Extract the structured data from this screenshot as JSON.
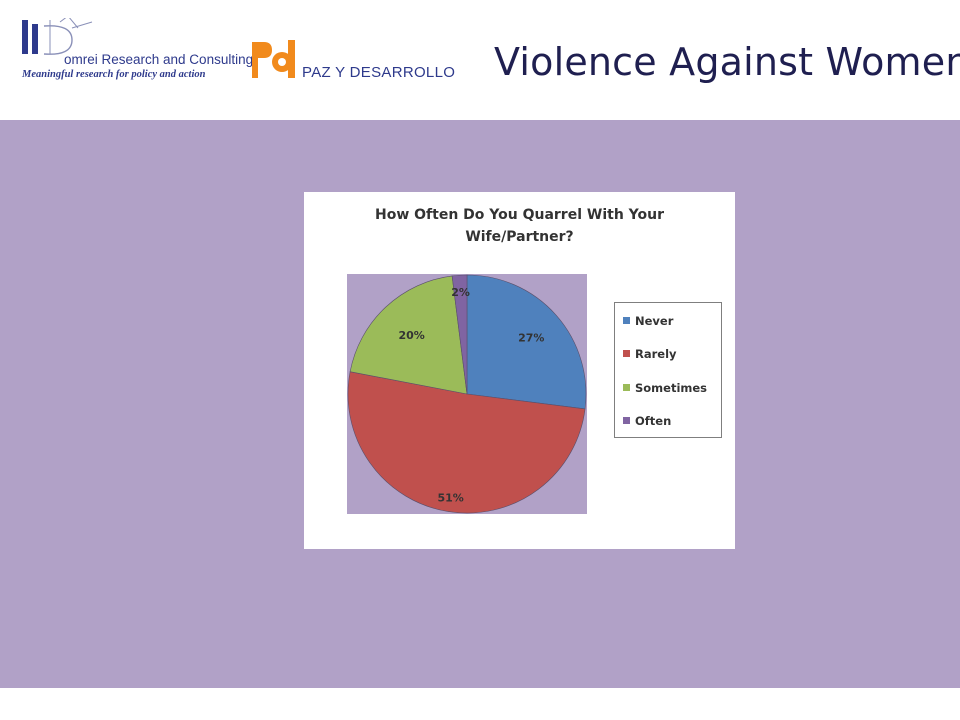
{
  "header": {
    "domrei_logo_name": "omrei Research and Consulting",
    "domrei_logo_tagline": "Meaningful research for policy and action",
    "pd_logo_text": "PAZ Y DESARROLLO",
    "slide_title": "Violence Against Women"
  },
  "colors": {
    "content_background": "#b1a1c7",
    "logo_blue": "#2e3a8c",
    "logo_orange": "#f18a1c"
  },
  "chart_data": {
    "type": "pie",
    "title_lines": [
      "How Often Do You Quarrel With Your",
      "Wife/Partner?"
    ],
    "categories": [
      "Never",
      "Rarely",
      "Sometimes",
      "Often"
    ],
    "values": [
      27,
      51,
      20,
      2
    ],
    "data_labels": [
      "27%",
      "51%",
      "20%",
      "2%"
    ],
    "colors": [
      "#4f81bd",
      "#c0504d",
      "#9bbb59",
      "#8064a2"
    ],
    "start_angle_deg": 0,
    "direction": "clockwise",
    "legend_position": "right"
  }
}
